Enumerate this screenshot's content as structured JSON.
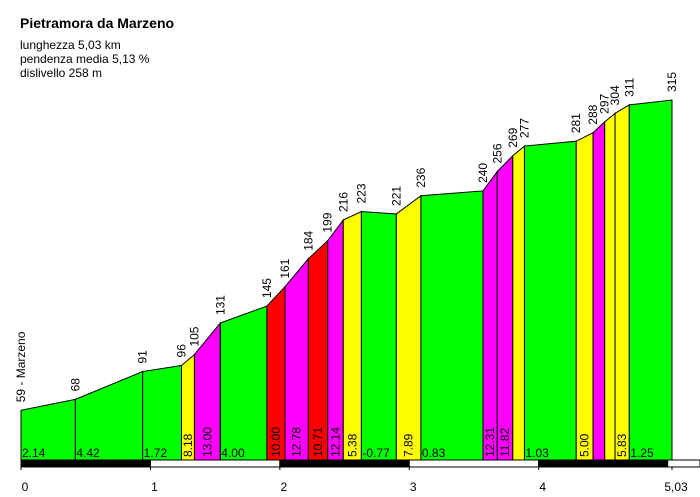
{
  "chart_data": {
    "type": "profile",
    "title": "Pietramora da Marzeno",
    "info": [
      "lunghezza 5,03 km",
      "pendenza media 5,13 %",
      "dislivello 258 m"
    ],
    "x": [
      0,
      0.42,
      0.94,
      1.24,
      1.34,
      1.54,
      1.9,
      2.04,
      2.22,
      2.37,
      2.49,
      2.63,
      2.9,
      3.09,
      3.57,
      3.68,
      3.8,
      3.89,
      4.29,
      4.42,
      4.51,
      4.59,
      4.7,
      5.03
    ],
    "values": [
      59,
      68,
      91,
      96,
      105,
      131,
      145,
      161,
      184,
      199,
      216,
      223,
      221,
      236,
      240,
      256,
      269,
      277,
      281,
      288,
      297,
      304,
      311,
      315
    ],
    "value_labels": [
      "59 - Marzeno",
      null,
      null,
      null,
      null,
      null,
      null,
      null,
      null,
      null,
      null,
      null,
      null,
      null,
      null,
      null,
      null,
      null,
      null,
      null,
      null,
      null,
      null,
      null
    ],
    "gradients": [
      2.14,
      4.42,
      1.72,
      8.18,
      13,
      4,
      10,
      12.78,
      10.71,
      12.14,
      5.38,
      -0.77,
      7.89,
      0.83,
      12.31,
      11.82,
      null,
      1.03,
      5,
      null,
      null,
      5.83,
      1.25
    ],
    "gradient_labels": [
      "2.14",
      "4.42",
      "1.72",
      "8.18",
      "13.00",
      "4.00",
      "10.00",
      "12.78",
      "10.71",
      "12.14",
      "5.38",
      "-0.77",
      "7.89",
      "0.83",
      "12.31",
      "11.82",
      null,
      "1.03",
      "5.00",
      null,
      null,
      "5.83",
      "1.25"
    ],
    "colors": [
      "#00ff00",
      "#00ff00",
      "#00ff00",
      "#ffff00",
      "#ff00ff",
      "#00ff00",
      "#ff0000",
      "#ff00ff",
      "#ff0000",
      "#ff00ff",
      "#ffff00",
      "#00ff00",
      "#ffff00",
      "#00ff00",
      "#ff00ff",
      "#ff00ff",
      "#ffff00",
      "#00ff00",
      "#ffff00",
      "#ff00ff",
      "#ffff00",
      "#ffff00",
      "#00ff00"
    ],
    "xlim": [
      0,
      5.03
    ],
    "xticks": [
      0,
      1,
      2,
      3,
      4,
      {
        "value": 5.03,
        "label": "5,03"
      }
    ],
    "ylim": [
      18,
      348
    ]
  }
}
